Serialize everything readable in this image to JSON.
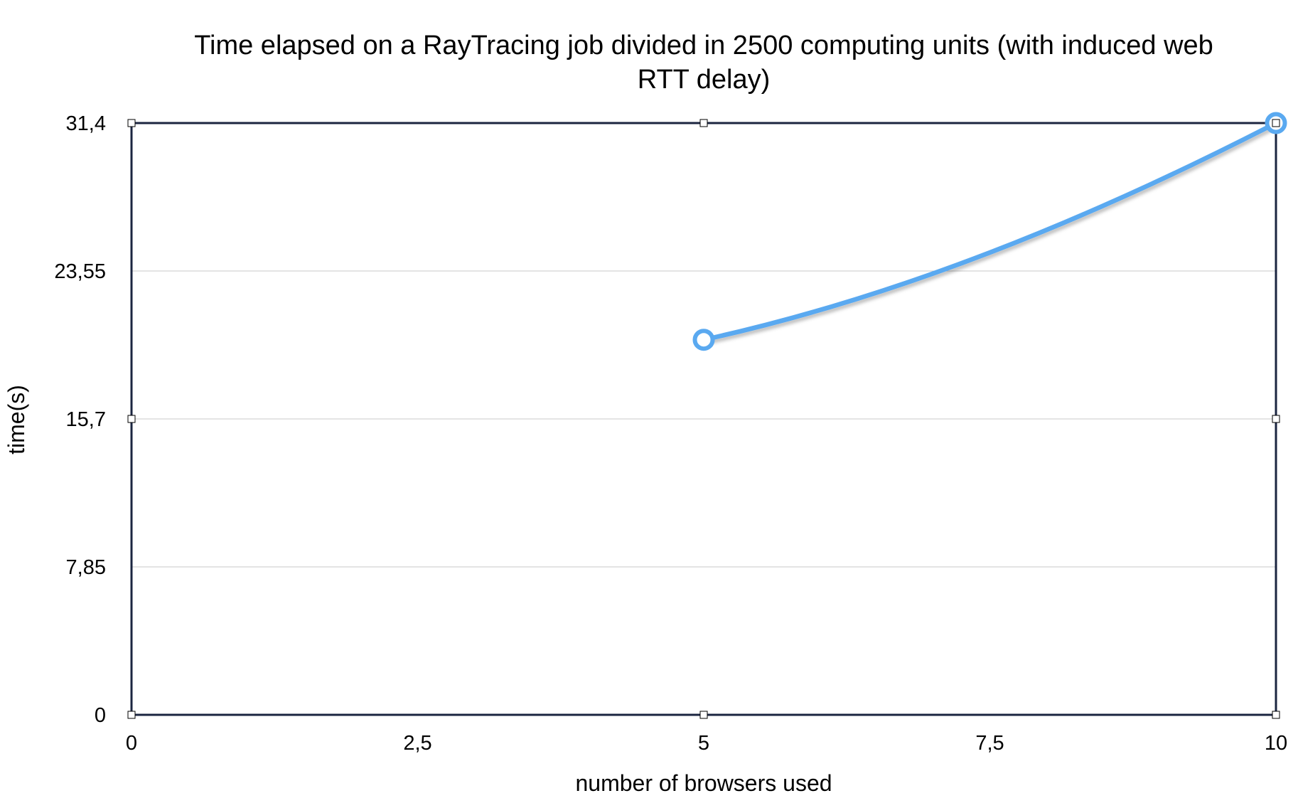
{
  "chart_data": {
    "type": "line",
    "title_lines": [
      "Time elapsed on a RayTracing job divided in 2500 computing units (with induced web",
      "RTT delay)"
    ],
    "xlabel": "number of browsers used",
    "ylabel": "time(s)",
    "xlim": [
      0,
      10
    ],
    "ylim": [
      0,
      31.4
    ],
    "x_ticks": [
      0,
      2.5,
      5,
      7.5,
      10
    ],
    "x_tick_labels": [
      "0",
      "2,5",
      "5",
      "7,5",
      "10"
    ],
    "y_ticks": [
      0,
      7.85,
      15.7,
      23.55,
      31.4
    ],
    "y_tick_labels": [
      "0",
      "7,85",
      "15,7",
      "23,55",
      "31,4"
    ],
    "grid": true,
    "series": [
      {
        "color": "#5AA9F0",
        "marker": "circle",
        "smooth": true,
        "x": [
          5,
          10
        ],
        "y": [
          19.9,
          31.4
        ]
      }
    ]
  }
}
